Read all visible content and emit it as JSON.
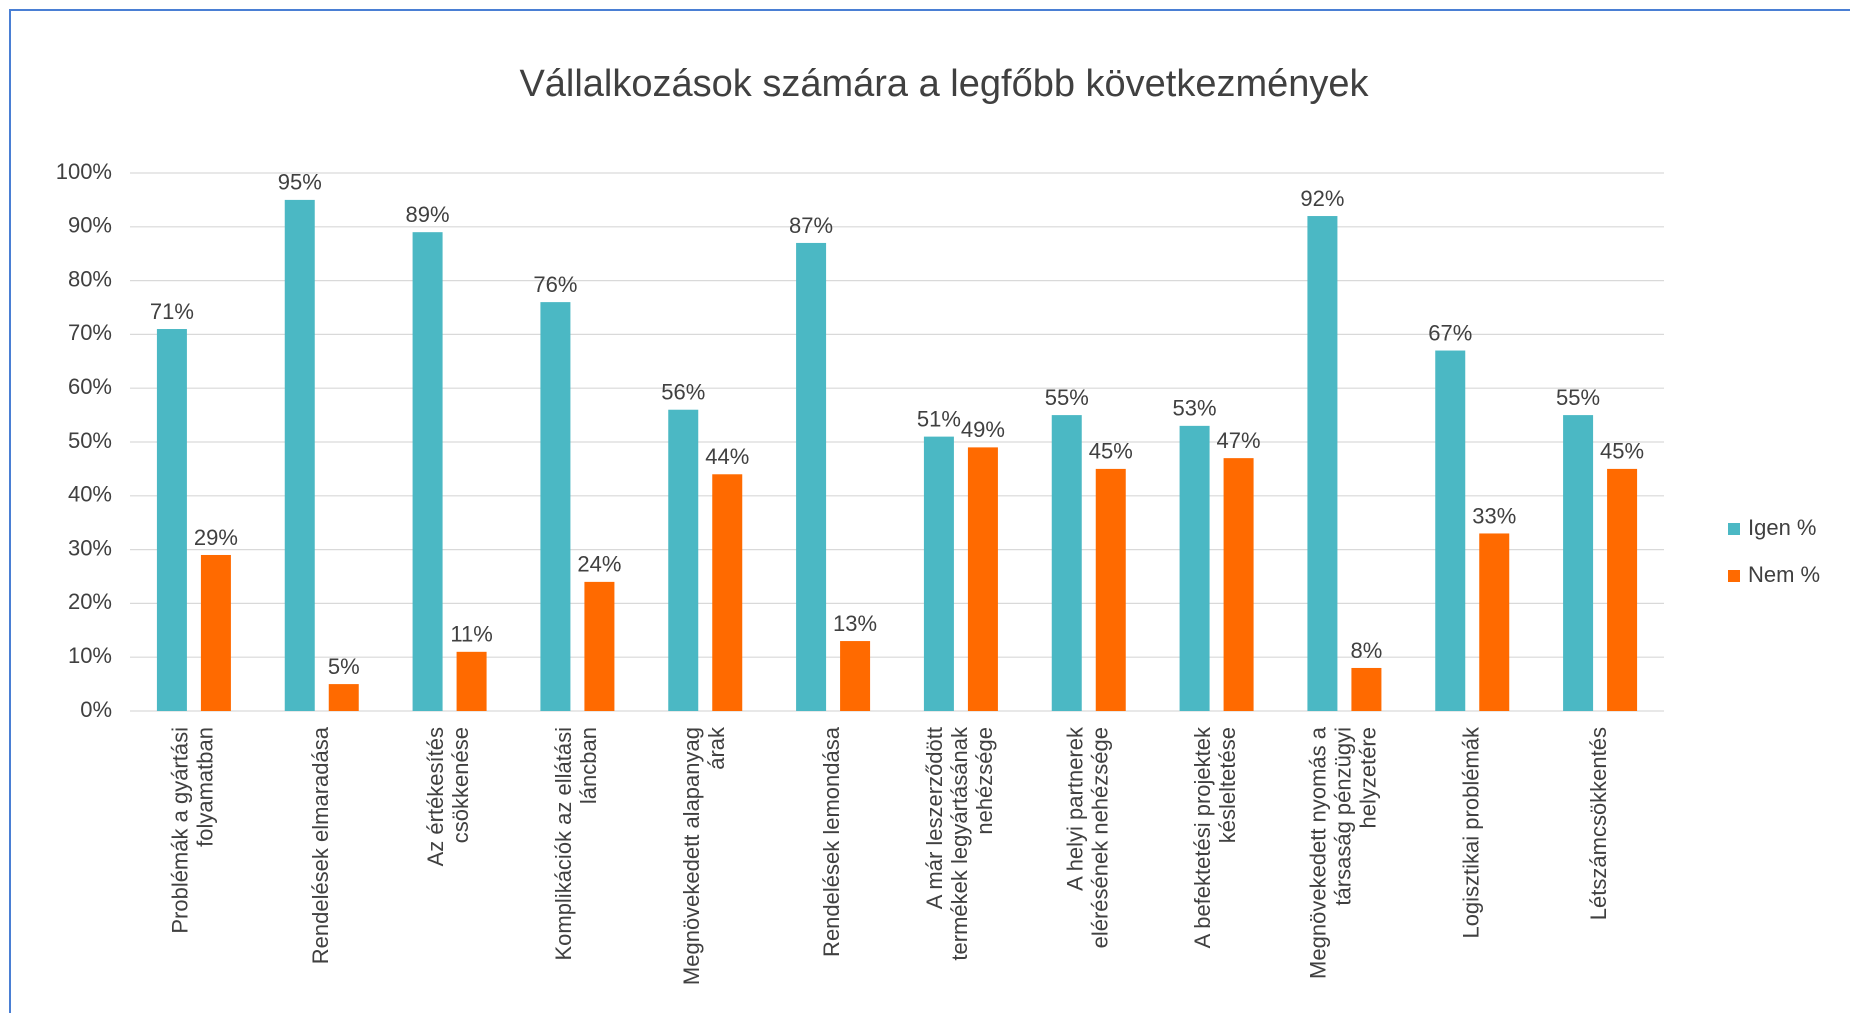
{
  "chart_data": {
    "type": "bar",
    "title": "Vállalkozások számára a legfőbb következmények",
    "categories": [
      "Problémák a gyártási folyamatban",
      "Rendelések elmaradása",
      "Az értékesítés csökkenése",
      "Komplikációk az ellátási láncban",
      "Megnövekedett alapanyag árak",
      "Rendelések lemondása",
      "A már leszerződött termékek legyártásának nehézsége",
      "A helyi partnerek elérésének nehézsége",
      "A befektetési projektek késleltetése",
      "Megnövekedett nyomás a társaság pénzügyi helyzetére",
      "Logisztikai problémák",
      "Létszámcsökkentés"
    ],
    "series": [
      {
        "name": "Igen %",
        "color": "#4bb8c4",
        "values": [
          71,
          95,
          89,
          76,
          56,
          87,
          51,
          55,
          53,
          92,
          67,
          55
        ],
        "value_labels": [
          "71%",
          "95%",
          "89%",
          "76%",
          "56%",
          "87%",
          "51%",
          "55%",
          "53%",
          "92%",
          "67%",
          "55%"
        ]
      },
      {
        "name": "Nem %",
        "color": "#ff6a00",
        "values": [
          29,
          5,
          11,
          24,
          44,
          13,
          49,
          45,
          47,
          8,
          33,
          45
        ],
        "value_labels": [
          "29%",
          "5%",
          "11%",
          "24%",
          "44%",
          "13%",
          "49%",
          "45%",
          "47%",
          "8%",
          "33%",
          "45%"
        ]
      }
    ],
    "ylim": [
      0,
      100
    ],
    "yticks": [
      {
        "value": 0,
        "label": "0%"
      },
      {
        "value": 10,
        "label": "10%"
      },
      {
        "value": 20,
        "label": "20%"
      },
      {
        "value": 30,
        "label": "30%"
      },
      {
        "value": 40,
        "label": "40%"
      },
      {
        "value": 50,
        "label": "50%"
      },
      {
        "value": 60,
        "label": "60%"
      },
      {
        "value": 70,
        "label": "70%"
      },
      {
        "value": 80,
        "label": "80%"
      },
      {
        "value": 90,
        "label": "90%"
      },
      {
        "value": 100,
        "label": "100%"
      }
    ],
    "grid": true,
    "legend": "right"
  }
}
